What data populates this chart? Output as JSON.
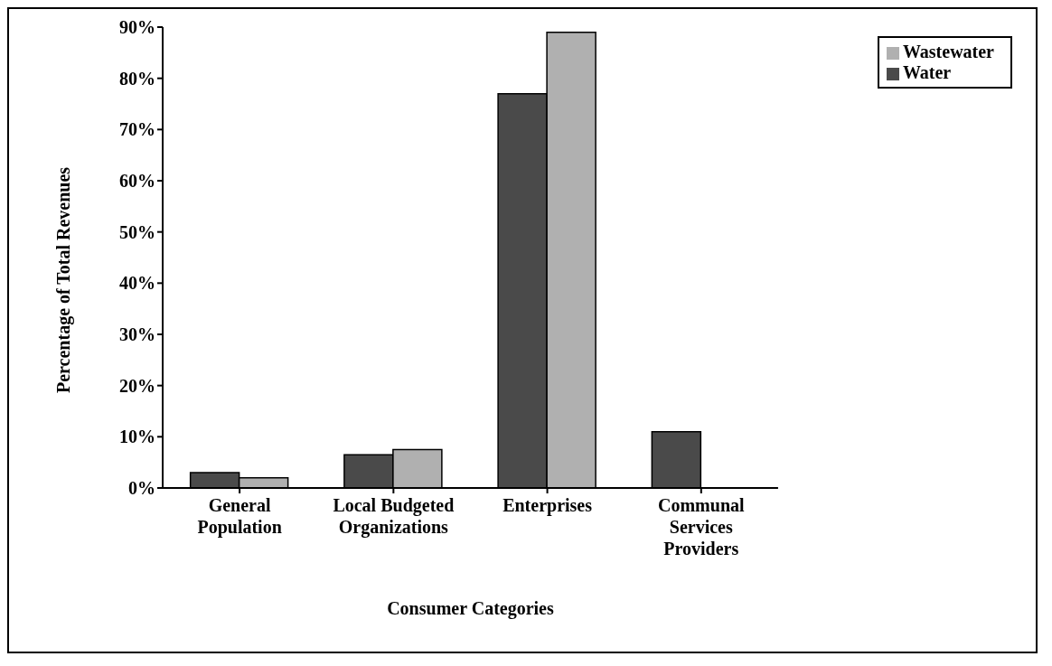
{
  "chart_data": {
    "type": "bar",
    "xlabel": "Consumer Categories",
    "ylabel": "Percentage of Total Revenues",
    "categories": [
      "General Population",
      "Local Budgeted Organizations",
      "Enterprises",
      "Communal Services Providers"
    ],
    "series": [
      {
        "name": "Water",
        "color": "#4a4a4a",
        "values": [
          3,
          6.5,
          77,
          11
        ]
      },
      {
        "name": "Wastewater",
        "color": "#b0b0b0",
        "values": [
          2,
          7.5,
          89,
          0
        ]
      }
    ],
    "ylim": [
      0,
      90
    ],
    "yticks": [
      {
        "value": 0,
        "label": "0%"
      },
      {
        "value": 10,
        "label": "10%"
      },
      {
        "value": 20,
        "label": "20%"
      },
      {
        "value": 30,
        "label": "30%"
      },
      {
        "value": 40,
        "label": "40%"
      },
      {
        "value": 50,
        "label": "50%"
      },
      {
        "value": 60,
        "label": "60%"
      },
      {
        "value": 70,
        "label": "70%"
      },
      {
        "value": 80,
        "label": "80%"
      },
      {
        "value": 90,
        "label": "90%"
      }
    ],
    "grid": false,
    "legend": "top right"
  }
}
